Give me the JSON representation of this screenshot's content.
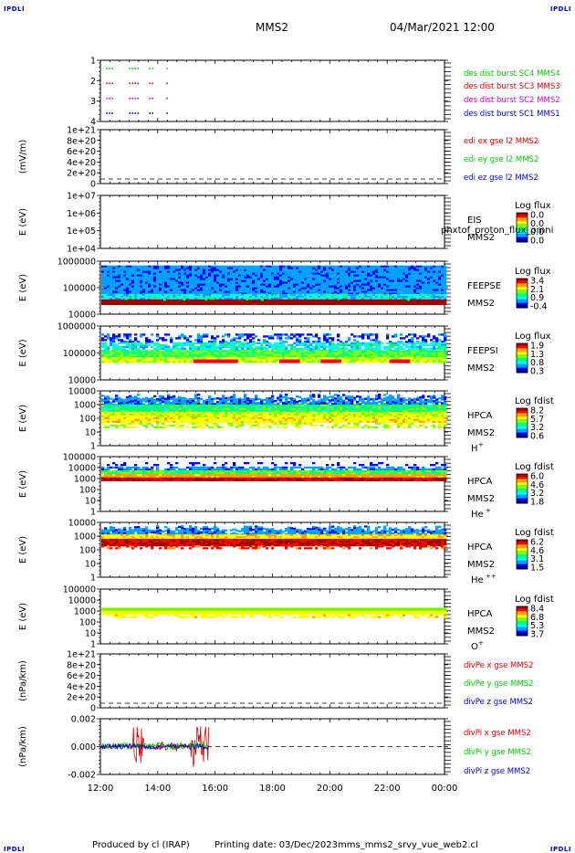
{
  "header": {
    "corner_label": "IPDLI",
    "spacecraft": "MMS2",
    "datetime": "04/Mar/2021 12:00"
  },
  "footer": {
    "produced_by": "Produced by cl (IRAP)",
    "printing_date": "Printing date: 03/Dec/2023",
    "script_name": "mms_mms2_srvy_vue_web2.cl"
  },
  "colors": {
    "red": "#dd0000",
    "green": "#00cc00",
    "blue": "#0000cc",
    "magenta": "#cc00cc",
    "spectrum": [
      "#000080",
      "#0000ff",
      "#00a0ff",
      "#00ffff",
      "#00ff80",
      "#80ff00",
      "#ffff00",
      "#ffa000",
      "#ff0000",
      "#a00000"
    ]
  },
  "chart_data": {
    "type": "multi-panel",
    "x_axis": {
      "range": [
        "12:00",
        "00:00"
      ],
      "tick_labels": [
        "12:00",
        "14:00",
        "16:00",
        "18:00",
        "20:00",
        "22:00",
        "00:00"
      ],
      "data_end": "15:48"
    },
    "panels": [
      {
        "id": "burst",
        "type": "scatter",
        "ylabel": "",
        "ytick_labels": [
          "1",
          "2",
          "3",
          "4"
        ],
        "series": [
          {
            "name": "des dist burst SC1 MMS1",
            "color": "blue",
            "level": 1
          },
          {
            "name": "des dist burst SC2 MMS2",
            "color": "magenta",
            "level": 2
          },
          {
            "name": "des dist burst SC3 MMS3",
            "color": "red",
            "level": 3
          },
          {
            "name": "des dist burst SC4 MMS4",
            "color": "green",
            "level": 4
          }
        ],
        "bursts": [
          [
            "12:12",
            "12:24"
          ],
          [
            "13:00",
            "13:18"
          ],
          [
            "13:42",
            "13:48"
          ],
          [
            "14:18",
            "14:21"
          ]
        ]
      },
      {
        "id": "edi",
        "type": "line",
        "ylabel": "(mV/m)",
        "ytick_labels": [
          "1e+21",
          "8e+20",
          "6e+20",
          "4e+20",
          "2e+20",
          "0"
        ],
        "dashed_zero": true,
        "series": [
          {
            "name": "edi ex gse l2 MMS2",
            "color": "red"
          },
          {
            "name": "edi ey gse l2 MMS2",
            "color": "green"
          },
          {
            "name": "edi ez gse l2 MMS2",
            "color": "blue"
          }
        ]
      },
      {
        "id": "eis",
        "type": "heatmap",
        "ylabel": "E (eV)",
        "ytick_labels": [
          "1e+07",
          "1e+06",
          "1e+05",
          "1e+04"
        ],
        "instrument": "EIS",
        "subtitle": "phxtof_proton_flux_omni",
        "spacecraft": "MMS2",
        "colorbar_title": "Log flux",
        "colorbar_ticks": [
          "0.0",
          "0.0",
          "0.0",
          "0.0"
        ]
      },
      {
        "id": "feeps_e",
        "type": "heatmap",
        "ylabel": "E (eV)",
        "ytick_labels": [
          "1000000",
          "100000",
          "10000"
        ],
        "instrument": "FEEPSE",
        "spacecraft": "MMS2",
        "colorbar_title": "Log flux",
        "colorbar_ticks": [
          "3.4",
          "2.1",
          "0.9",
          "-0.4"
        ]
      },
      {
        "id": "feeps_i",
        "type": "heatmap",
        "ylabel": "E (eV)",
        "ytick_labels": [
          "1000000",
          "100000",
          "10000"
        ],
        "instrument": "FEEPSI",
        "spacecraft": "MMS2",
        "colorbar_title": "Log flux",
        "colorbar_ticks": [
          "1.9",
          "1.3",
          "0.8",
          "0.3"
        ]
      },
      {
        "id": "hpca_h",
        "type": "heatmap",
        "ylabel": "E (eV)",
        "ytick_labels": [
          "10000",
          "1000",
          "100",
          "10",
          "1"
        ],
        "instrument": "HPCA",
        "spacecraft": "MMS2",
        "species": "H",
        "charge": "+",
        "colorbar_title": "Log fdist",
        "colorbar_ticks": [
          "8.2",
          "5.7",
          "3.2",
          "0.6"
        ]
      },
      {
        "id": "hpca_he1",
        "type": "heatmap",
        "ylabel": "E (eV)",
        "ytick_labels": [
          "100000",
          "10000",
          "1000",
          "100",
          "10",
          "1"
        ],
        "instrument": "HPCA",
        "spacecraft": "MMS2",
        "species": "He",
        "charge": "+",
        "colorbar_title": "Log fdist",
        "colorbar_ticks": [
          "6.0",
          "4.6",
          "3.2",
          "1.8"
        ]
      },
      {
        "id": "hpca_he2",
        "type": "heatmap",
        "ylabel": "E (eV)",
        "ytick_labels": [
          "10000",
          "1000",
          "100",
          "10",
          "1"
        ],
        "instrument": "HPCA",
        "spacecraft": "MMS2",
        "species": "He",
        "charge": "++",
        "colorbar_title": "Log fdist",
        "colorbar_ticks": [
          "6.2",
          "4.6",
          "3.1",
          "1.5"
        ]
      },
      {
        "id": "hpca_o",
        "type": "heatmap",
        "ylabel": "E (eV)",
        "ytick_labels": [
          "100000",
          "10000",
          "1000",
          "100",
          "10",
          "1"
        ],
        "instrument": "HPCA",
        "spacecraft": "MMS2",
        "species": "O",
        "charge": "+",
        "colorbar_title": "Log fdist",
        "colorbar_ticks": [
          "8.4",
          "6.8",
          "5.3",
          "3.7"
        ]
      },
      {
        "id": "divpe",
        "type": "line",
        "ylabel": "(nPa/km)",
        "ytick_labels": [
          "1e+21",
          "8e+20",
          "6e+20",
          "4e+20",
          "2e+20",
          "0"
        ],
        "dashed_zero": true,
        "series": [
          {
            "name": "divPe x gse MMS2",
            "color": "red"
          },
          {
            "name": "divPe y gse MMS2",
            "color": "green"
          },
          {
            "name": "divPe z gse MMS2",
            "color": "blue"
          }
        ]
      },
      {
        "id": "divpi",
        "type": "line",
        "ylabel": "(nPa/km)",
        "ytick_labels": [
          "0.002",
          "0.000",
          "-0.002"
        ],
        "ylim": [
          -0.003,
          0.003
        ],
        "dashed_zero": true,
        "series": [
          {
            "name": "divPi x gse MMS2",
            "color": "red"
          },
          {
            "name": "divPi y gse MMS2",
            "color": "green"
          },
          {
            "name": "divPi z gse MMS2",
            "color": "blue"
          }
        ]
      }
    ]
  }
}
